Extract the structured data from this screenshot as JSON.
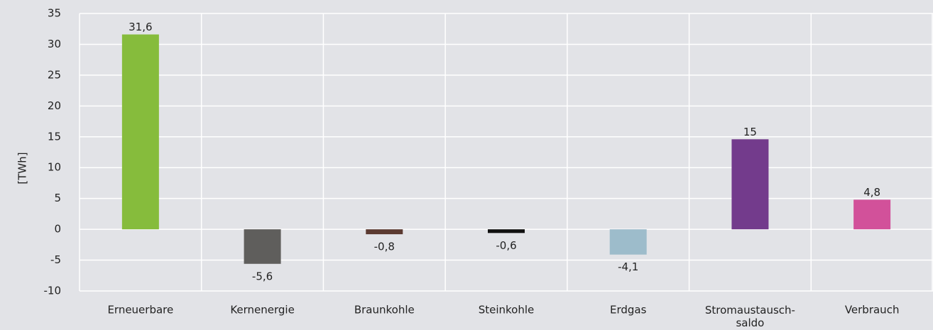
{
  "chart_data": {
    "type": "bar",
    "y_label": "[TWh]",
    "categories": [
      "Erneuerbare",
      "Kernenergie",
      "Braunkohle",
      "Steinkohle",
      "Erdgas",
      "Stromaustausch-\nsaldo",
      "Verbrauch"
    ],
    "values": [
      31.6,
      -5.6,
      -0.8,
      -0.6,
      -4.1,
      14.6,
      4.8
    ],
    "value_labels": [
      "31,6",
      "-5,6",
      "-0,8",
      "-0,6",
      "-4,1",
      "15",
      "4,8"
    ],
    "colors": [
      "#86bc3c",
      "#5f5e5c",
      "#5b3a31",
      "#111111",
      "#9dbccb",
      "#733b8c",
      "#d2519a"
    ],
    "ylim": [
      -10,
      35
    ],
    "yticks": [
      -10,
      -5,
      0,
      5,
      10,
      15,
      20,
      25,
      30,
      35
    ],
    "grid": true
  }
}
